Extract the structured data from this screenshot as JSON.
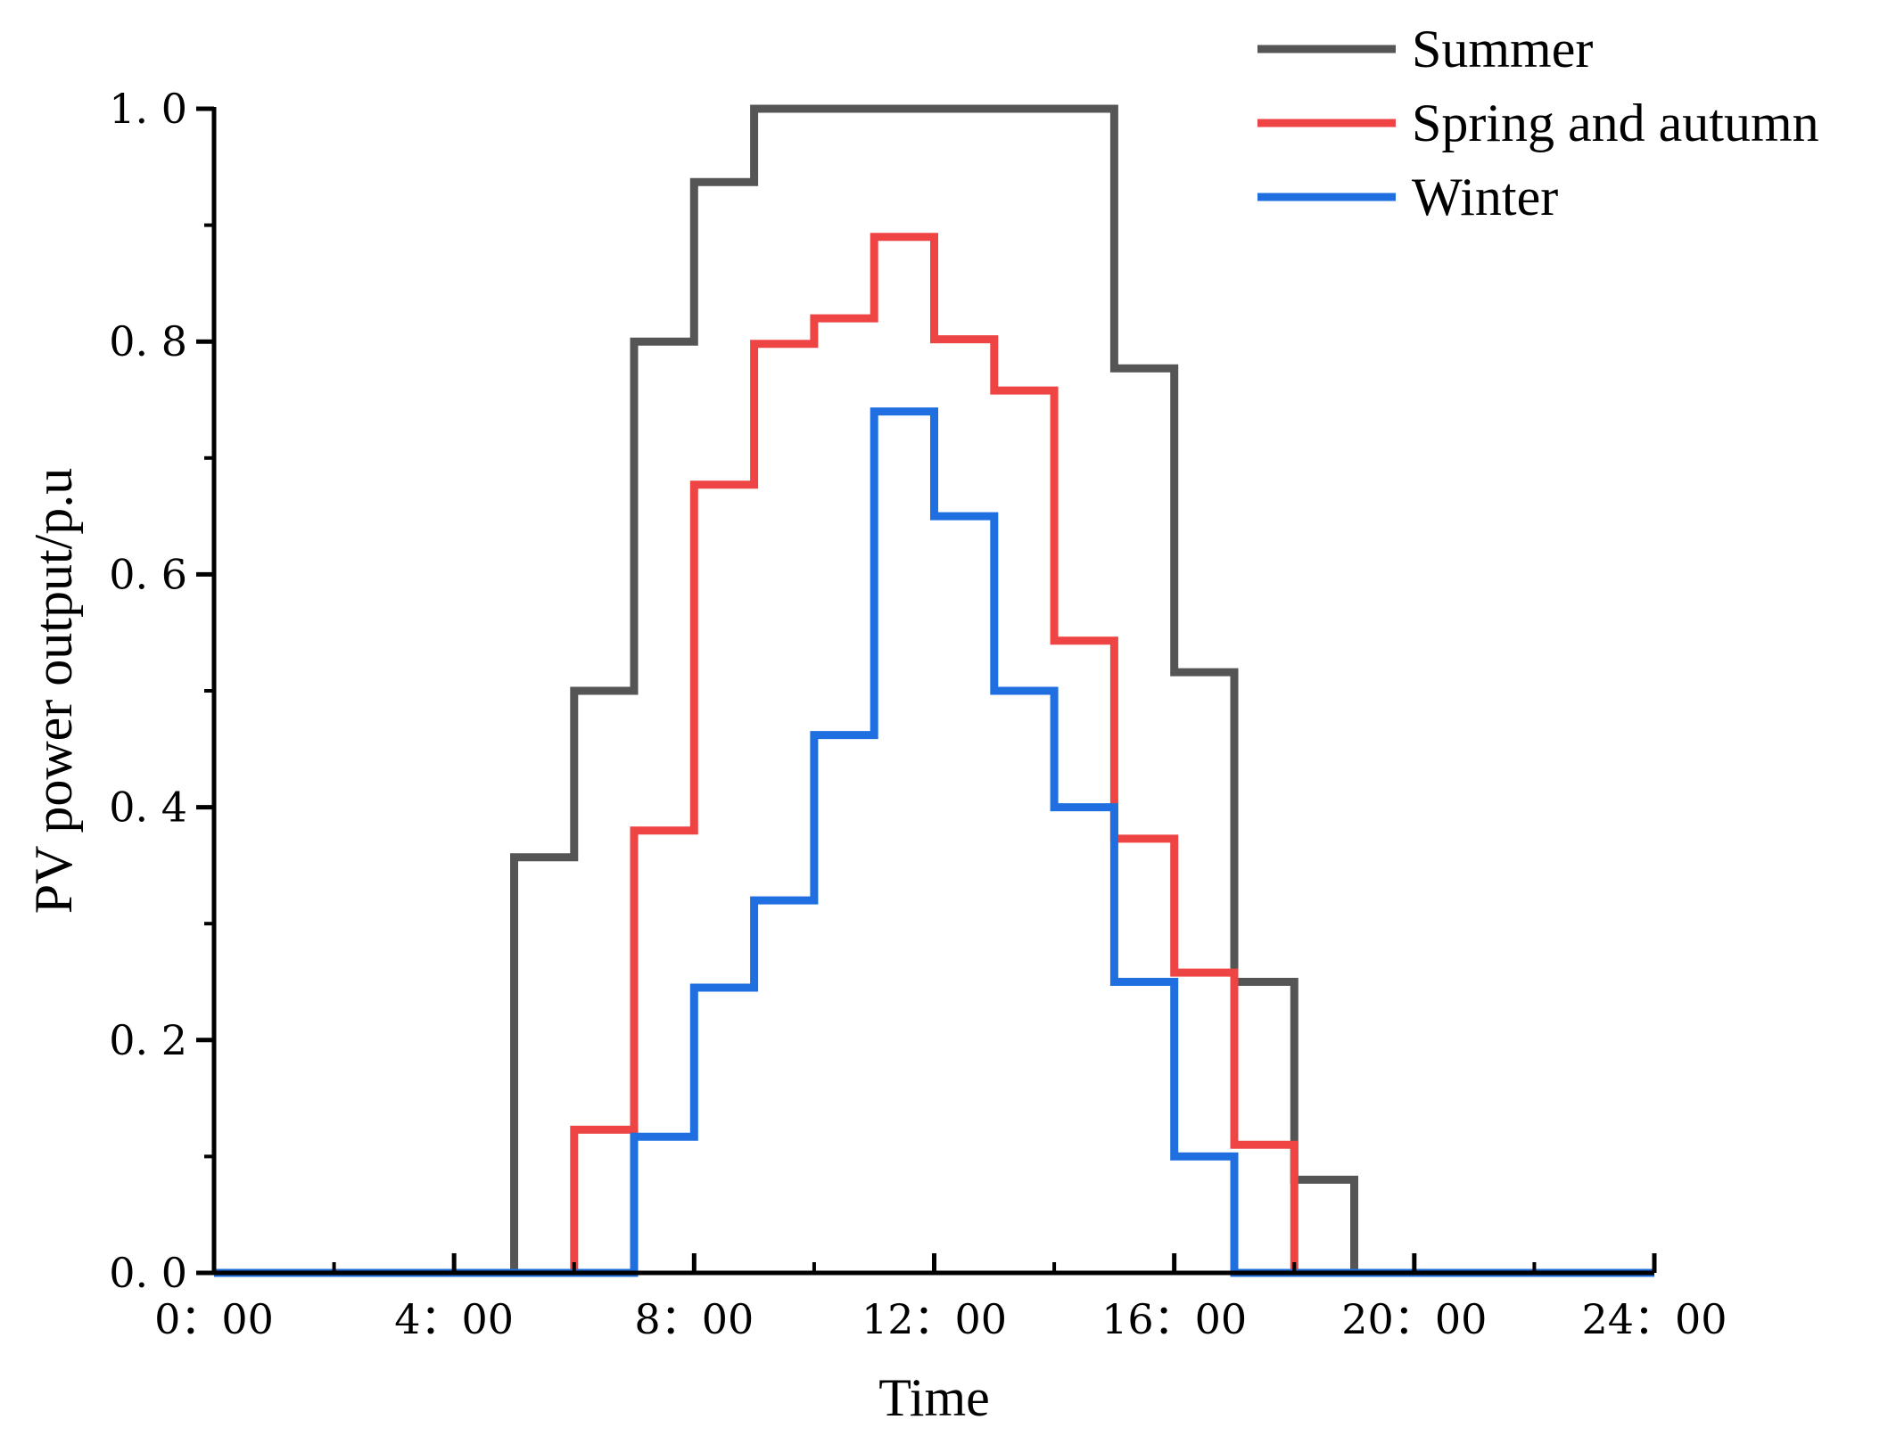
{
  "chart_data": {
    "type": "line",
    "step": true,
    "title": "",
    "xlabel": "Time",
    "ylabel": "PV power output/p.u",
    "xlim": [
      0,
      24
    ],
    "ylim": [
      0,
      1.0
    ],
    "x_ticks": [
      0,
      4,
      8,
      12,
      16,
      20,
      24
    ],
    "x_tick_labels": [
      "0：00",
      "4：00",
      "8：00",
      "12：00",
      "16：00",
      "20：00",
      "24：00"
    ],
    "y_ticks": [
      0,
      0.2,
      0.4,
      0.6,
      0.8,
      1.0
    ],
    "y_tick_labels": [
      "0. 0",
      "0. 2",
      "0. 4",
      "0. 6",
      "0. 8",
      "1. 0"
    ],
    "grid": false,
    "legend_position": "top-right",
    "x": [
      1,
      2,
      3,
      4,
      5,
      6,
      7,
      8,
      9,
      10,
      11,
      12,
      13,
      14,
      15,
      16,
      17,
      18,
      19,
      20,
      21,
      22,
      23,
      24
    ],
    "series": [
      {
        "name": "Summer",
        "color": "#555555",
        "values": [
          0,
          0,
          0,
          0,
          0,
          0.357,
          0.5,
          0.8,
          0.937,
          1.0,
          1.0,
          1.0,
          1.0,
          1.0,
          1.0,
          0.777,
          0.516,
          0.25,
          0.08,
          0,
          0,
          0,
          0,
          0
        ]
      },
      {
        "name": "Spring and autumn",
        "color": "#ef4444",
        "values": [
          0,
          0,
          0,
          0,
          0,
          0,
          0.123,
          0.38,
          0.677,
          0.798,
          0.82,
          0.89,
          0.802,
          0.758,
          0.543,
          0.373,
          0.258,
          0.11,
          0,
          0,
          0,
          0,
          0,
          0
        ]
      },
      {
        "name": "Winter",
        "color": "#1f6fe0",
        "values": [
          0,
          0,
          0,
          0,
          0,
          0,
          0,
          0.117,
          0.245,
          0.32,
          0.462,
          0.74,
          0.65,
          0.5,
          0.4,
          0.25,
          0.1,
          0,
          0,
          0,
          0,
          0,
          0,
          0
        ]
      }
    ]
  }
}
